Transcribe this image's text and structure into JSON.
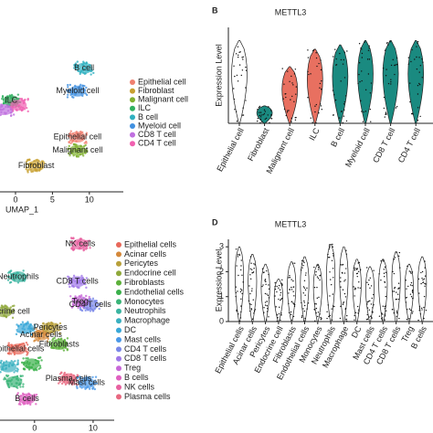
{
  "chart_data": [
    {
      "type": "scatter",
      "xlabel": "UMAP_1",
      "xlim": [
        -2.1,
        14.6
      ],
      "ylim": [
        -2,
        23.9
      ],
      "xticks": [
        0,
        5,
        10
      ],
      "series": [
        {
          "name": "Epithelial cell",
          "color": "#f08070",
          "x": 8.4,
          "y": 5.4
        },
        {
          "name": "Fibroblast",
          "color": "#c8a030",
          "x": 2.8,
          "y": 1.5
        },
        {
          "name": "Malignant cell",
          "color": "#80b030",
          "x": 8.4,
          "y": 3.6
        },
        {
          "name": "ILC",
          "color": "#30b060",
          "x": -0.6,
          "y": 10.3
        },
        {
          "name": "B cell",
          "color": "#30b0c0",
          "x": 9.3,
          "y": 14.7
        },
        {
          "name": "Myeloid cell",
          "color": "#4090e0",
          "x": 8.4,
          "y": 11.6
        },
        {
          "name": "CD8 T cell",
          "color": "#c070e0",
          "x": -1.5,
          "y": 9.1
        },
        {
          "name": "CD4 T cell",
          "color": "#f060b0",
          "x": 0.4,
          "y": 9.7
        }
      ]
    },
    {
      "type": "violin",
      "panel": "B",
      "title": "METTL3",
      "ylabel": "Expression Level",
      "ylim": [
        0,
        11
      ],
      "categories": [
        "Epithelial cell",
        "Fibroblast",
        "Malignant cell",
        "ILC",
        "B cell",
        "Myeloid cell",
        "CD8 T cell",
        "CD4 T cell"
      ],
      "values": [
        9.5,
        2,
        6.5,
        8.5,
        9,
        9.5,
        9.5,
        9.5
      ],
      "colors": [
        "#ffffff",
        "#1a8a80",
        "#e87060",
        "#e87060",
        "#1a8a80",
        "#1a8a80",
        "#1a8a80",
        "#1a8a80"
      ]
    },
    {
      "type": "scatter",
      "xlim": [
        -5.9,
        13.6
      ],
      "ylim": [
        -3,
        28.6
      ],
      "xticks": [
        0,
        10
      ],
      "series": [
        {
          "name": "Epithelial cells",
          "color": "#e8685a",
          "x": -2.8,
          "y": 9.0
        },
        {
          "name": "Acinar cells",
          "color": "#d4883a",
          "x": 1.1,
          "y": 11.4
        },
        {
          "name": "Pericytes",
          "color": "#b8a03a",
          "x": 2.7,
          "y": 12.6
        },
        {
          "name": "Endocrine cell",
          "color": "#8fa83a",
          "x": -5.2,
          "y": 15.3
        },
        {
          "name": "Fibroblasts",
          "color": "#5cb03a",
          "x": 4.2,
          "y": 9.8
        },
        {
          "name": "Endothelial cells",
          "color": "#3ab04a",
          "x": -0.5,
          "y": 6.5
        },
        {
          "name": "Monocytes",
          "color": "#3ab478",
          "x": -3.5,
          "y": 3.5
        },
        {
          "name": "Neutrophils",
          "color": "#3ab4a0",
          "x": -2.8,
          "y": 21.2
        },
        {
          "name": "Macrophage",
          "color": "#3ab0c0",
          "x": -4.5,
          "y": 6.0
        },
        {
          "name": "DC",
          "color": "#3aa8d8",
          "x": -1.5,
          "y": 12.5
        },
        {
          "name": "Mast cells",
          "color": "#4a98e8",
          "x": 8.9,
          "y": 3.3
        },
        {
          "name": "CD4 T cells",
          "color": "#7a88e8",
          "x": 9.5,
          "y": 16.5
        },
        {
          "name": "CD8 T cells",
          "color": "#a078e8",
          "x": 7.3,
          "y": 20.4
        },
        {
          "name": "Treg",
          "color": "#c868d8",
          "x": 7.8,
          "y": 17.0
        },
        {
          "name": "B cells",
          "color": "#e060c0",
          "x": -1.3,
          "y": 0.6
        },
        {
          "name": "NK cells",
          "color": "#e860a0",
          "x": 7.8,
          "y": 26.7
        },
        {
          "name": "Plasma cells",
          "color": "#e86880",
          "x": 5.8,
          "y": 4.0
        }
      ]
    },
    {
      "type": "violin",
      "panel": "D",
      "title": "METTL3",
      "ylabel": "Expression Level",
      "ylim": [
        0,
        3.3
      ],
      "yticks": [
        0,
        1,
        2,
        3
      ],
      "color": "#ffffff",
      "categories": [
        "Epithelial cells",
        "Acinar cells",
        "Pericytes",
        "Endocrine cell",
        "Fibroblasts",
        "Endothelial cells",
        "Monocytes",
        "Neutrophils",
        "Macrophage",
        "DC",
        "Mast cells",
        "CD4 T cells",
        "CD8 T cells",
        "Treg",
        "B cells"
      ],
      "values": [
        3.0,
        2.7,
        2.3,
        1.7,
        2.4,
        2.6,
        2.3,
        3.1,
        3.0,
        2.5,
        2.2,
        2.5,
        2.8,
        2.3,
        2.6
      ]
    }
  ]
}
